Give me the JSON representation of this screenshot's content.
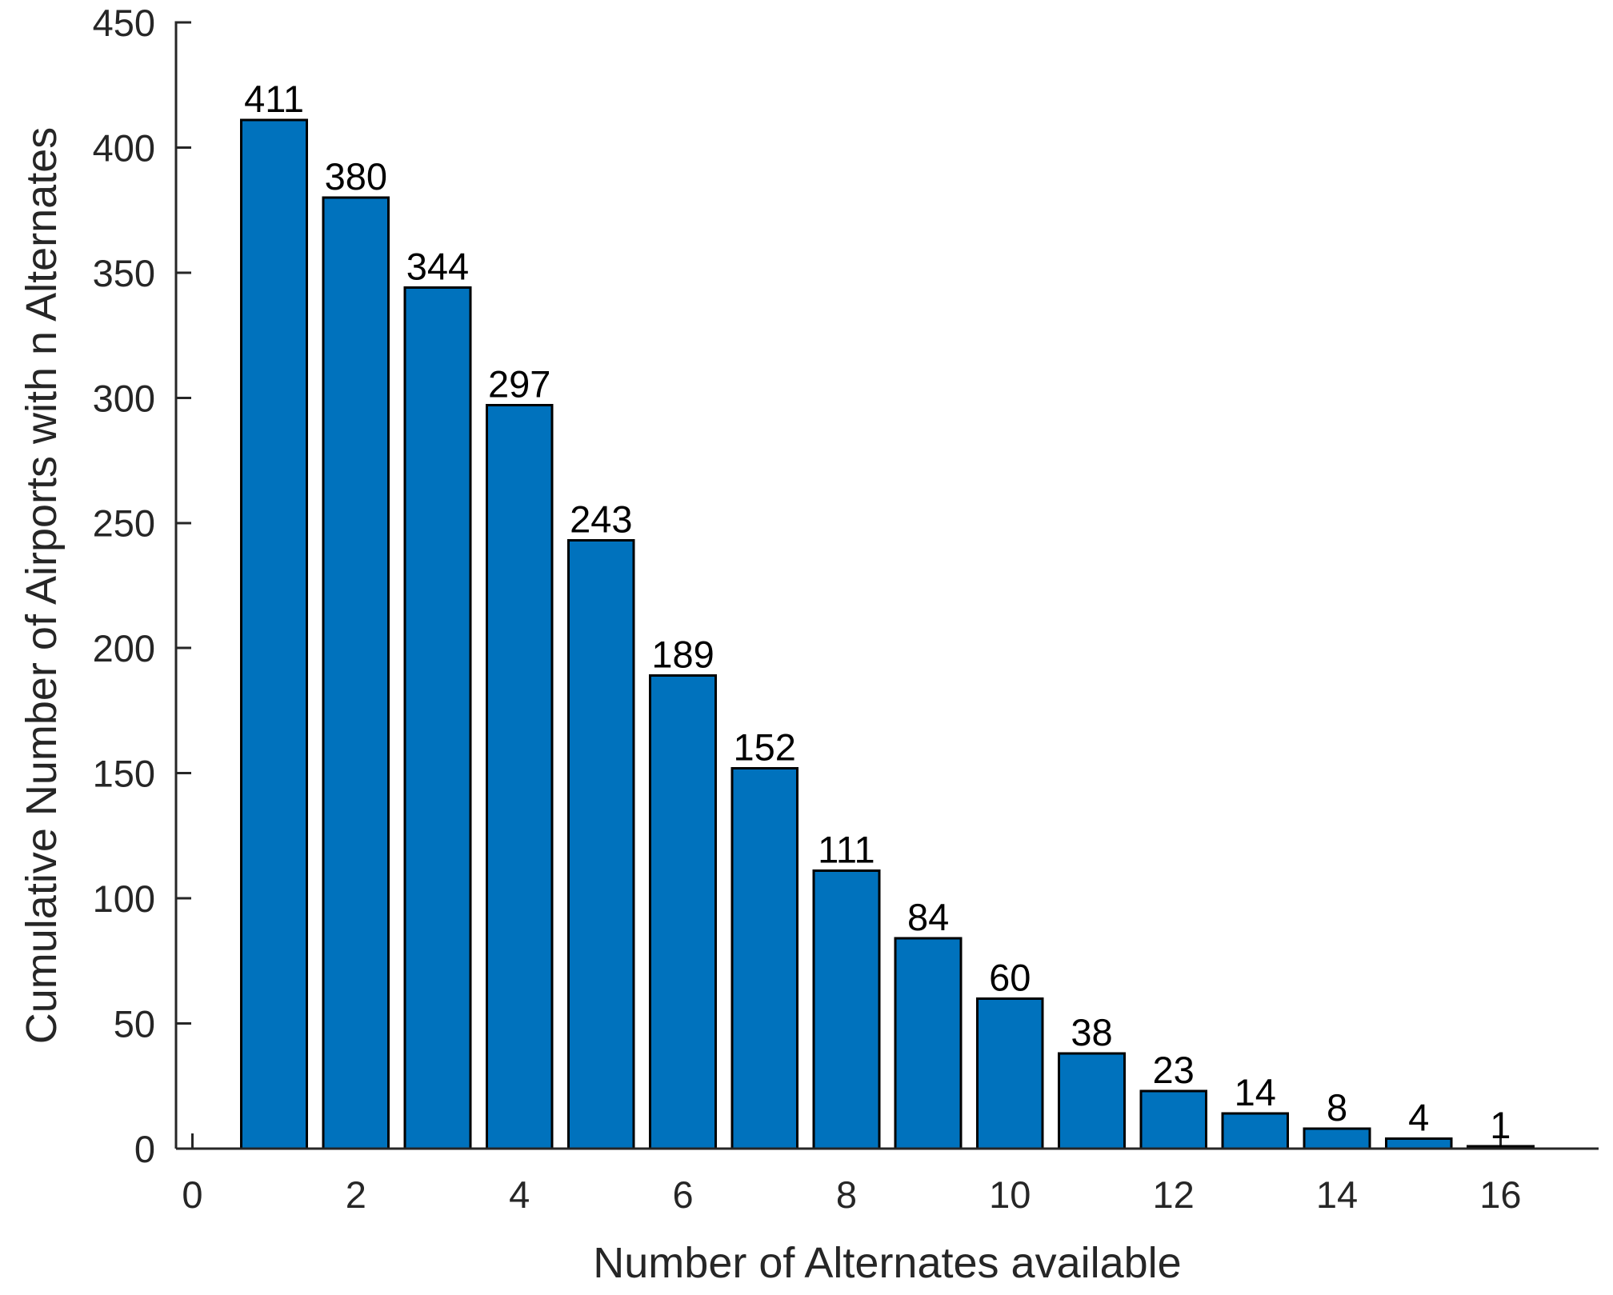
{
  "figure": {
    "background": "#ffffff"
  },
  "chart_data": {
    "type": "bar",
    "title": "",
    "xlabel": "Number of Alternates available",
    "ylabel": "Cumulative Number of Airports with n Alternates",
    "x": [
      1,
      2,
      3,
      4,
      5,
      6,
      7,
      8,
      9,
      10,
      11,
      12,
      13,
      14,
      15,
      16
    ],
    "values": [
      411,
      380,
      344,
      297,
      243,
      189,
      152,
      111,
      84,
      60,
      38,
      23,
      14,
      8,
      4,
      1
    ],
    "bar_value_labels": [
      "411",
      "380",
      "344",
      "297",
      "243",
      "189",
      "152",
      "111",
      "84",
      "60",
      "38",
      "23",
      "14",
      "8",
      "4",
      "1"
    ],
    "x_ticks": [
      0,
      2,
      4,
      6,
      8,
      10,
      12,
      14,
      16
    ],
    "y_ticks": [
      0,
      50,
      100,
      150,
      200,
      250,
      300,
      350,
      400,
      450
    ],
    "xlim": [
      -0.2,
      17.2
    ],
    "ylim": [
      0,
      450
    ],
    "bar_width": 0.8,
    "grid": false,
    "legend": null,
    "tick_direction": "in",
    "colors": {
      "bar_fill": "#0072BD",
      "bar_edge": "#000000",
      "axis": "#262626",
      "tick_text": "#262626",
      "value_text": "#000000"
    }
  }
}
